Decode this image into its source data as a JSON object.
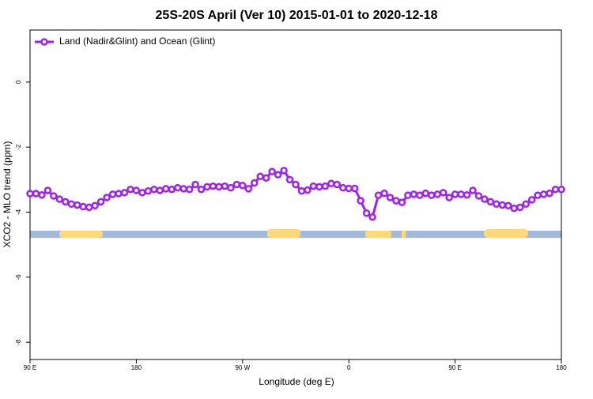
{
  "chart_data": {
    "type": "line",
    "title": "25S-20S April (Ver 10)   2015-01-01 to 2020-12-18",
    "xlabel": "Longitude (deg E)",
    "ylabel": "XCO2 - MLO trend (ppm)",
    "x": [
      90,
      95,
      100,
      105,
      110,
      115,
      120,
      125,
      130,
      135,
      140,
      145,
      150,
      155,
      160,
      165,
      170,
      175,
      180,
      185,
      190,
      195,
      200,
      205,
      210,
      215,
      220,
      225,
      230,
      235,
      240,
      245,
      250,
      255,
      260,
      265,
      270,
      275,
      280,
      285,
      290,
      295,
      300,
      305,
      310,
      315,
      320,
      325,
      330,
      335,
      340,
      345,
      350,
      355,
      360,
      365,
      370,
      375,
      380,
      385,
      390,
      395,
      400,
      405,
      410,
      415,
      420,
      425,
      430,
      435,
      440,
      445,
      450,
      455,
      460,
      465,
      470,
      475,
      480,
      485,
      490,
      495,
      500,
      505,
      510,
      515,
      520,
      525,
      530,
      535,
      540
    ],
    "series": [
      {
        "name": "Land (Nadir&Glint) and Ocean (Glint)",
        "color": "#a020f0",
        "values": [
          -3.43,
          -3.43,
          -3.47,
          -3.33,
          -3.5,
          -3.6,
          -3.68,
          -3.75,
          -3.78,
          -3.83,
          -3.85,
          -3.8,
          -3.68,
          -3.55,
          -3.45,
          -3.43,
          -3.4,
          -3.3,
          -3.33,
          -3.4,
          -3.35,
          -3.3,
          -3.33,
          -3.28,
          -3.3,
          -3.25,
          -3.28,
          -3.3,
          -3.15,
          -3.3,
          -3.22,
          -3.2,
          -3.22,
          -3.2,
          -3.25,
          -3.15,
          -3.18,
          -3.28,
          -3.1,
          -2.9,
          -2.95,
          -2.75,
          -2.85,
          -2.72,
          -3.0,
          -3.15,
          -3.35,
          -3.32,
          -3.2,
          -3.22,
          -3.2,
          -3.12,
          -3.15,
          -3.25,
          -3.27,
          -3.27,
          -3.65,
          -4.03,
          -4.15,
          -3.48,
          -3.42,
          -3.55,
          -3.65,
          -3.7,
          -3.48,
          -3.45,
          -3.48,
          -3.42,
          -3.48,
          -3.45,
          -3.4,
          -3.55,
          -3.45,
          -3.45,
          -3.47,
          -3.33,
          -3.5,
          -3.6,
          -3.68,
          -3.75,
          -3.78,
          -3.8,
          -3.88,
          -3.85,
          -3.75,
          -3.62,
          -3.48,
          -3.45,
          -3.42,
          -3.3,
          -3.3
        ]
      }
    ],
    "xlim": [
      90,
      540
    ],
    "xticks": [
      {
        "value": 90,
        "label": "90 E"
      },
      180,
      {
        "value": 270,
        "label": "90 W"
      },
      {
        "value": 360,
        "label": "0"
      },
      {
        "value": 450,
        "label": "90 E"
      },
      {
        "value": 540,
        "label": "180"
      }
    ],
    "ylim": [
      -8.53,
      1.6
    ],
    "yticks": [
      -8,
      -6,
      -4,
      -2,
      0
    ],
    "legend": "top-left"
  }
}
